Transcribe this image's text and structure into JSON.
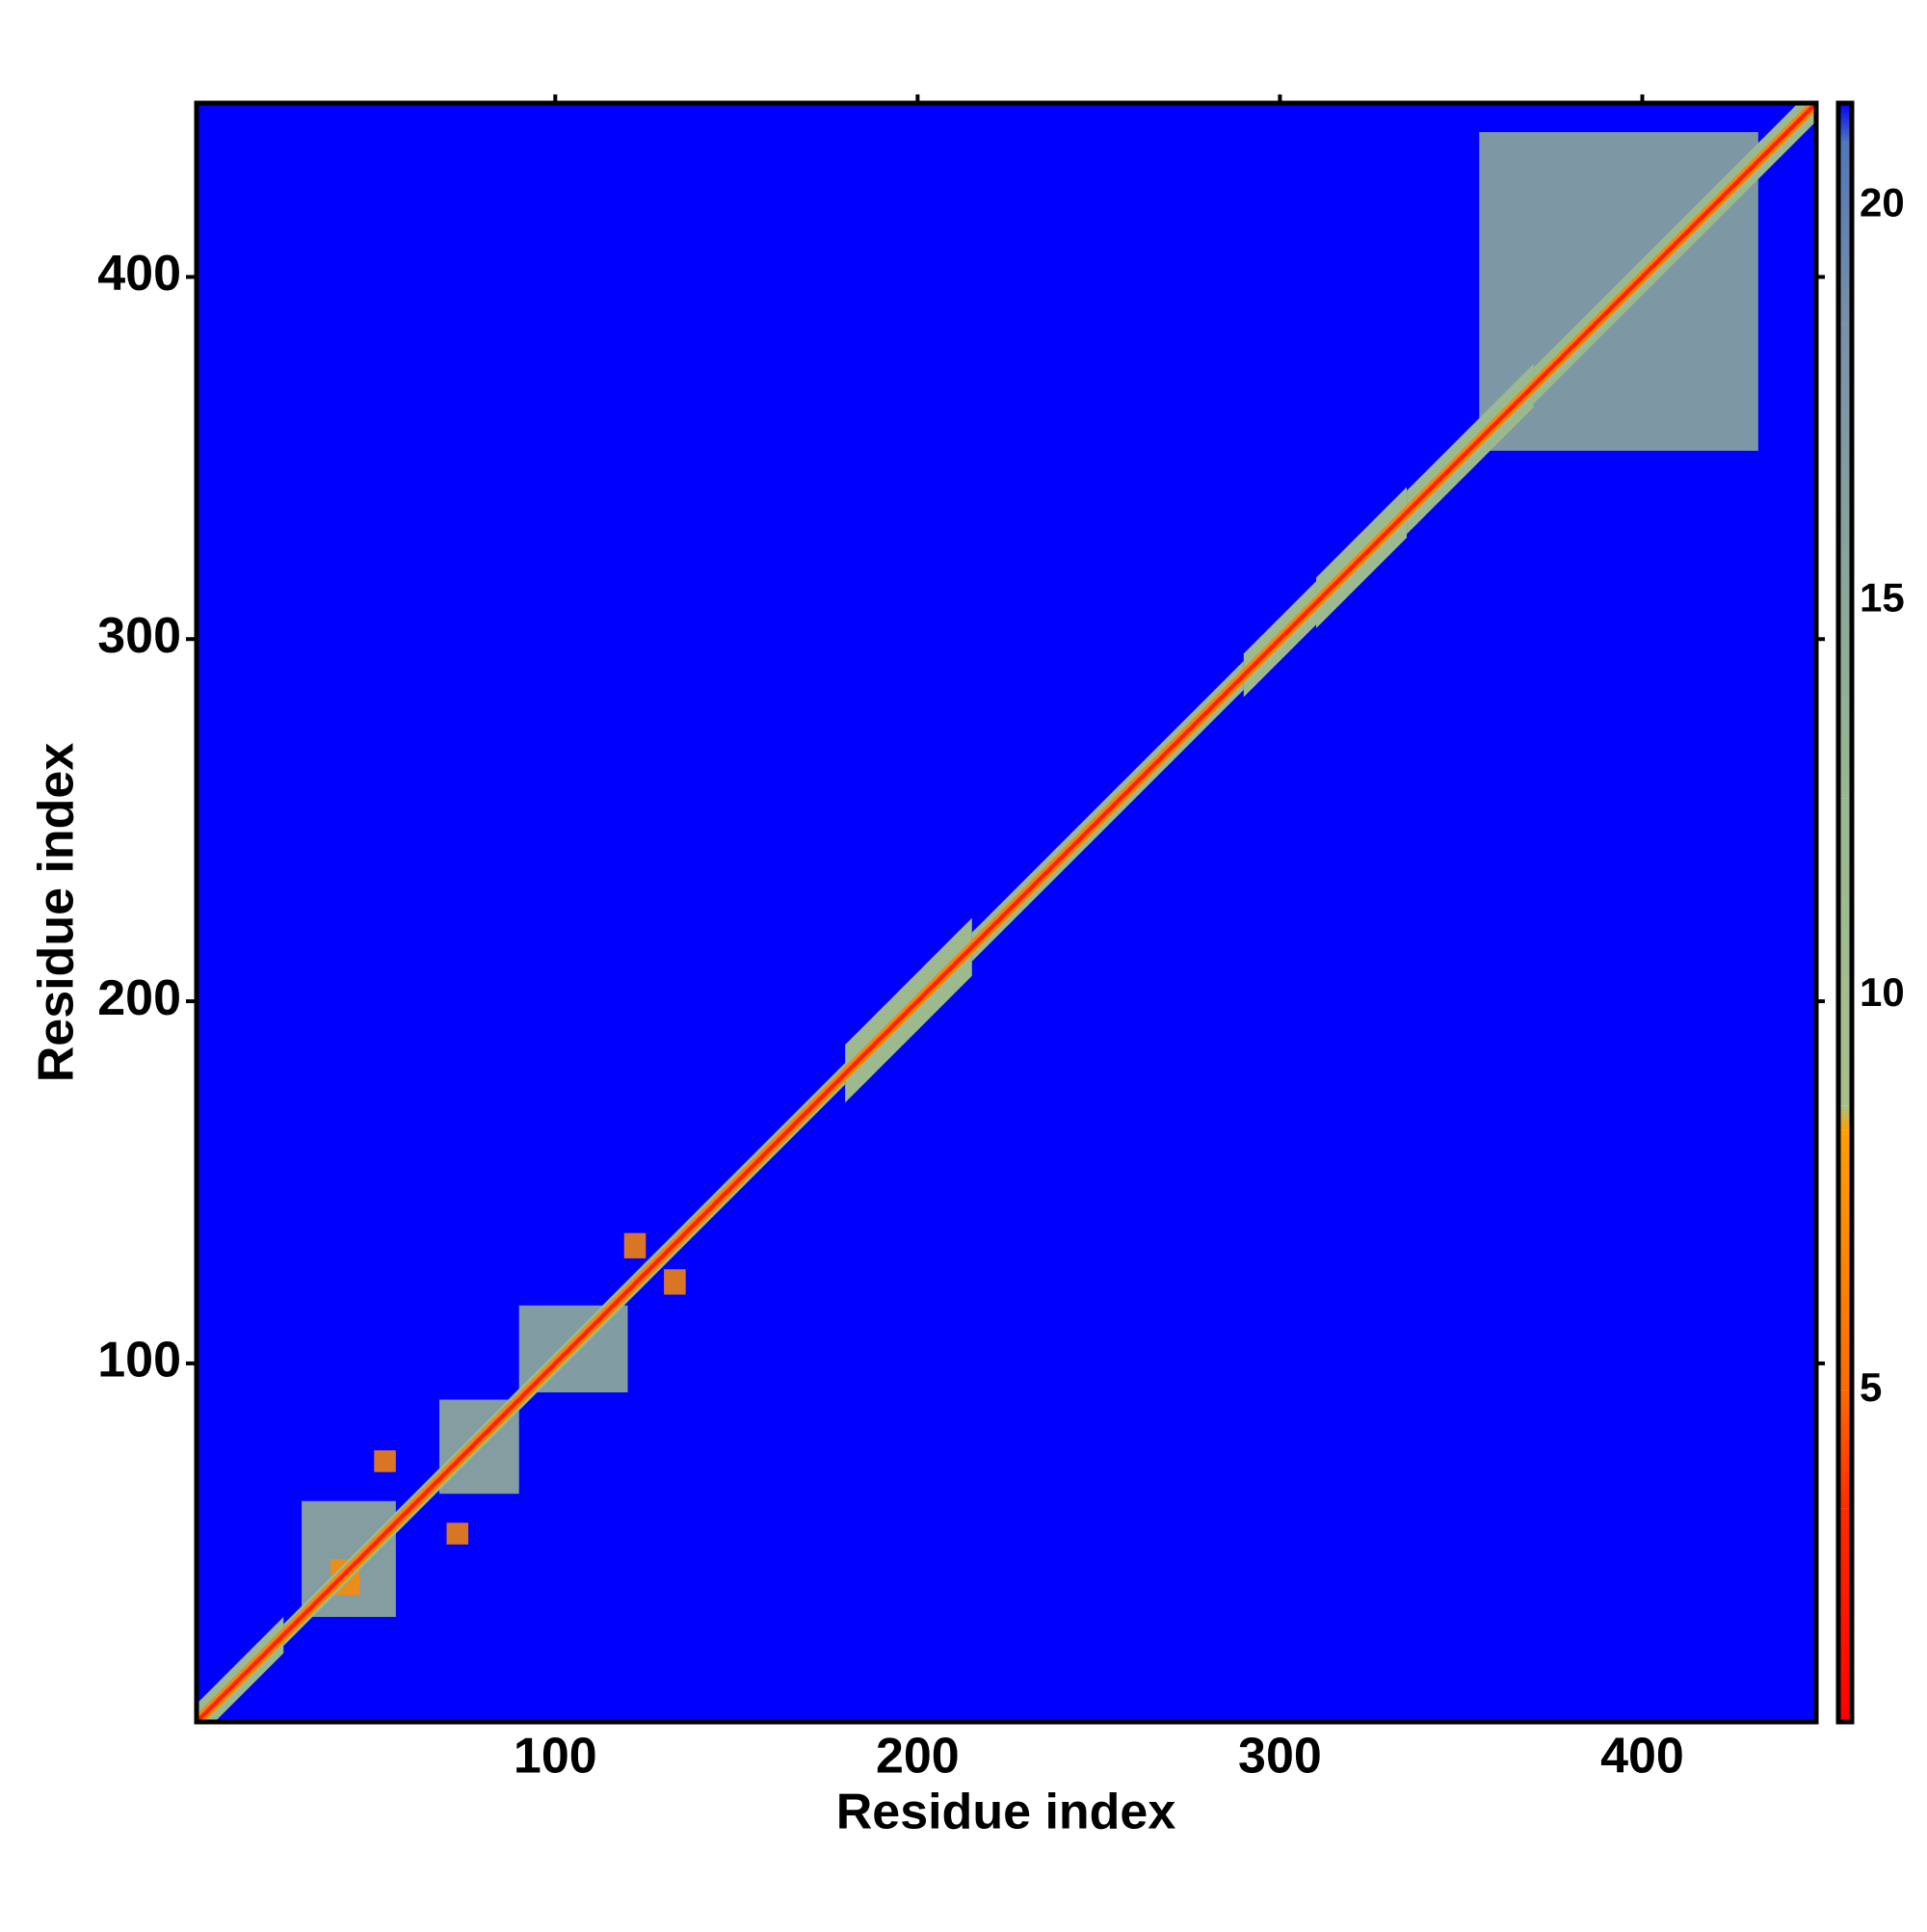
{
  "chart_data": {
    "type": "heatmap",
    "xlabel": "Residue index",
    "ylabel": "Residue index",
    "xlim": [
      1,
      448
    ],
    "ylim": [
      1,
      448
    ],
    "xticks": [
      100,
      200,
      300,
      400
    ],
    "yticks": [
      100,
      200,
      300,
      400
    ],
    "background_value": 21.3,
    "clim": [
      0.8,
      21.3
    ],
    "cticks": [
      5,
      10,
      15,
      20
    ],
    "colorscale": [
      [
        0.8,
        "#ff0000"
      ],
      [
        3.5,
        "#ff2a00"
      ],
      [
        5,
        "#ff6a00"
      ],
      [
        8.3,
        "#ffa000"
      ],
      [
        8.6,
        "#a8c088"
      ],
      [
        12.5,
        "#98b890"
      ],
      [
        18.5,
        "#7890a8"
      ],
      [
        20.8,
        "#5078b8"
      ],
      [
        21.3,
        "#0000ff"
      ]
    ],
    "regions": [
      {
        "x": [
          355,
          432
        ],
        "y": [
          352,
          440
        ],
        "value": 13.5
      },
      {
        "x": [
          30,
          56
        ],
        "y": [
          30,
          62
        ],
        "value": 12
      },
      {
        "x": [
          68,
          90
        ],
        "y": [
          64,
          90
        ],
        "value": 12
      },
      {
        "x": [
          90,
          120
        ],
        "y": [
          92,
          116
        ],
        "value": 12.5
      },
      {
        "x": [
          119,
          125
        ],
        "y": [
          129,
          136
        ],
        "value": 7
      },
      {
        "x": [
          130,
          136
        ],
        "y": [
          119,
          126
        ],
        "value": 7
      },
      {
        "x": [
          50,
          56
        ],
        "y": [
          70,
          76
        ],
        "value": 7
      },
      {
        "x": [
          70,
          76
        ],
        "y": [
          50,
          56
        ],
        "value": 7
      },
      {
        "x": [
          38,
          46
        ],
        "y": [
          36,
          46
        ],
        "value": 7
      }
    ],
    "bands": [
      {
        "start": 1,
        "end": 25,
        "halfwidth": 5,
        "value": 12
      },
      {
        "start": 25,
        "end": 180,
        "halfwidth": 3,
        "value": 12
      },
      {
        "start": 180,
        "end": 215,
        "halfwidth": 8,
        "value": 11.5
      },
      {
        "start": 215,
        "end": 290,
        "halfwidth": 4,
        "value": 12
      },
      {
        "start": 290,
        "end": 310,
        "halfwidth": 6,
        "value": 11.5
      },
      {
        "start": 310,
        "end": 335,
        "halfwidth": 7,
        "value": 11.5
      },
      {
        "start": 335,
        "end": 370,
        "halfwidth": 6,
        "value": 12
      },
      {
        "start": 370,
        "end": 448,
        "halfwidth": 5,
        "value": 12
      },
      {
        "start": 1,
        "end": 448,
        "halfwidth": 2,
        "value": 6.5
      },
      {
        "start": 1,
        "end": 448,
        "halfwidth": 0.8,
        "value": 3
      }
    ]
  }
}
